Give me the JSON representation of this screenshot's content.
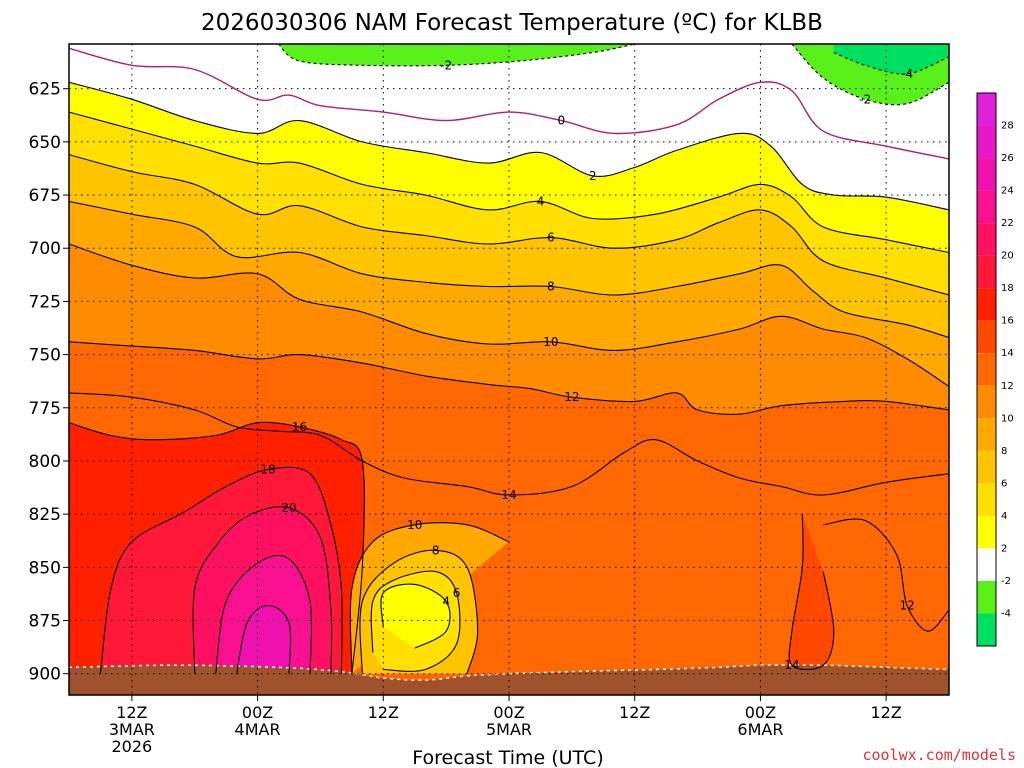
{
  "chart_data": {
    "type": "heatmap",
    "title": "2026030306 NAM Forecast Temperature (ºC) for KLBB",
    "xlabel": "Forecast Time (UTC)",
    "ylabel": "",
    "watermark": "coolwx.com/models",
    "x_ticks": [
      {
        "hours": 6,
        "lines": [
          "12Z",
          "3MAR",
          "2026"
        ]
      },
      {
        "hours": 18,
        "lines": [
          "00Z",
          "4MAR"
        ]
      },
      {
        "hours": 30,
        "lines": [
          "12Z"
        ]
      },
      {
        "hours": 42,
        "lines": [
          "00Z",
          "5MAR"
        ]
      },
      {
        "hours": 54,
        "lines": [
          "12Z"
        ]
      },
      {
        "hours": 66,
        "lines": [
          "00Z",
          "6MAR"
        ]
      },
      {
        "hours": 78,
        "lines": [
          "12Z"
        ]
      }
    ],
    "xlim": [
      0,
      84
    ],
    "y_ticks": [
      "625",
      "650",
      "675",
      "700",
      "725",
      "750",
      "775",
      "800",
      "825",
      "850",
      "875",
      "900"
    ],
    "y_tick_values": [
      625,
      650,
      675,
      700,
      725,
      750,
      775,
      800,
      825,
      850,
      875,
      900
    ],
    "ylim": [
      604,
      910
    ],
    "y_reversed": true,
    "colorbar": {
      "levels": [
        -6,
        -4,
        -2,
        2,
        4,
        6,
        8,
        10,
        12,
        14,
        16,
        18,
        20,
        22,
        24,
        26,
        28,
        30
      ],
      "tick_labels": [
        "-4",
        "-2",
        "2",
        "4",
        "6",
        "8",
        "10",
        "12",
        "14",
        "16",
        "18",
        "20",
        "22",
        "24",
        "26",
        "28"
      ],
      "colors": [
        "#00e060",
        "#58f018",
        "#ffffff",
        "#ffff00",
        "#ffe000",
        "#ffc400",
        "#ffa800",
        "#ff8c00",
        "#ff6800",
        "#ff4800",
        "#ff2000",
        "#ff1838",
        "#ff1060",
        "#f81090",
        "#f010b0",
        "#e818c8",
        "#e020d8"
      ]
    },
    "surface_color": "#a0522d",
    "contours": [
      {
        "label": "-4",
        "color": "#000000",
        "dashed": true,
        "p": [
          [
            73,
            608
          ],
          [
            76,
            614
          ],
          [
            80,
            618
          ],
          [
            84,
            610
          ]
        ]
      },
      {
        "label": "-2",
        "color": "#000000",
        "dashed": true,
        "p": [
          [
            20,
            604
          ],
          [
            22,
            612
          ],
          [
            28,
            614
          ],
          [
            36,
            614
          ],
          [
            43,
            612
          ],
          [
            50,
            608
          ],
          [
            54,
            604
          ]
        ]
      },
      {
        "label": "-2",
        "color": "#000000",
        "dashed": true,
        "p": [
          [
            69,
            604
          ],
          [
            72,
            620
          ],
          [
            76,
            630
          ],
          [
            80,
            632
          ],
          [
            84,
            622
          ]
        ]
      },
      {
        "label": "0",
        "color": "#b0206a",
        "dashed": false,
        "p": [
          [
            0,
            606
          ],
          [
            6,
            614
          ],
          [
            12,
            616
          ],
          [
            18,
            630
          ],
          [
            21,
            628
          ],
          [
            24,
            633
          ],
          [
            30,
            636
          ],
          [
            36,
            640
          ],
          [
            42,
            636
          ],
          [
            47,
            640
          ],
          [
            52,
            646
          ],
          [
            58,
            642
          ],
          [
            62,
            630
          ],
          [
            66,
            622
          ],
          [
            69,
            626
          ],
          [
            72,
            645
          ],
          [
            78,
            652
          ],
          [
            84,
            658
          ]
        ]
      },
      {
        "label": "2",
        "color": "#000000",
        "dashed": false,
        "p": [
          [
            0,
            622
          ],
          [
            6,
            630
          ],
          [
            12,
            640
          ],
          [
            18,
            646
          ],
          [
            22,
            640
          ],
          [
            28,
            650
          ],
          [
            34,
            655
          ],
          [
            40,
            660
          ],
          [
            45,
            655
          ],
          [
            50,
            666
          ],
          [
            54,
            662
          ],
          [
            58,
            654
          ],
          [
            64,
            646
          ],
          [
            67,
            652
          ],
          [
            70,
            670
          ],
          [
            73,
            675
          ],
          [
            78,
            676
          ],
          [
            84,
            682
          ]
        ]
      },
      {
        "label": "4",
        "color": "#000000",
        "dashed": false,
        "p": [
          [
            0,
            636
          ],
          [
            6,
            644
          ],
          [
            12,
            652
          ],
          [
            18,
            660
          ],
          [
            22,
            660
          ],
          [
            28,
            670
          ],
          [
            34,
            675
          ],
          [
            40,
            682
          ],
          [
            45,
            678
          ],
          [
            50,
            686
          ],
          [
            56,
            684
          ],
          [
            62,
            676
          ],
          [
            66,
            670
          ],
          [
            69,
            676
          ],
          [
            72,
            690
          ],
          [
            78,
            696
          ],
          [
            84,
            702
          ]
        ]
      },
      {
        "label": "6",
        "color": "#000000",
        "dashed": false,
        "p": [
          [
            0,
            656
          ],
          [
            6,
            664
          ],
          [
            12,
            670
          ],
          [
            18,
            684
          ],
          [
            22,
            680
          ],
          [
            28,
            690
          ],
          [
            34,
            694
          ],
          [
            40,
            698
          ],
          [
            46,
            695
          ],
          [
            52,
            700
          ],
          [
            58,
            696
          ],
          [
            62,
            688
          ],
          [
            66,
            682
          ],
          [
            69,
            690
          ],
          [
            72,
            706
          ],
          [
            78,
            714
          ],
          [
            84,
            722
          ]
        ]
      },
      {
        "label": "8",
        "color": "#000000",
        "dashed": false,
        "p": [
          [
            0,
            678
          ],
          [
            6,
            684
          ],
          [
            12,
            690
          ],
          [
            16,
            704
          ],
          [
            22,
            702
          ],
          [
            28,
            712
          ],
          [
            34,
            716
          ],
          [
            40,
            718
          ],
          [
            46,
            718
          ],
          [
            52,
            722
          ],
          [
            58,
            718
          ],
          [
            64,
            712
          ],
          [
            68,
            708
          ],
          [
            71,
            720
          ],
          [
            74,
            730
          ],
          [
            80,
            736
          ],
          [
            84,
            742
          ]
        ]
      },
      {
        "label": "10",
        "color": "#000000",
        "dashed": false,
        "p": [
          [
            0,
            698
          ],
          [
            6,
            708
          ],
          [
            12,
            714
          ],
          [
            18,
            712
          ],
          [
            22,
            724
          ],
          [
            28,
            730
          ],
          [
            34,
            740
          ],
          [
            40,
            745
          ],
          [
            46,
            744
          ],
          [
            52,
            748
          ],
          [
            58,
            744
          ],
          [
            64,
            738
          ],
          [
            68,
            732
          ],
          [
            72,
            738
          ],
          [
            76,
            742
          ],
          [
            80,
            752
          ],
          [
            84,
            765
          ]
        ]
      },
      {
        "label": "12",
        "color": "#000000",
        "dashed": false,
        "p": [
          [
            0,
            744
          ],
          [
            6,
            746
          ],
          [
            12,
            748
          ],
          [
            18,
            752
          ],
          [
            22,
            750
          ],
          [
            28,
            754
          ],
          [
            34,
            760
          ],
          [
            40,
            764
          ],
          [
            44,
            766
          ],
          [
            48,
            770
          ],
          [
            54,
            772
          ],
          [
            58,
            768
          ],
          [
            60,
            776
          ],
          [
            64,
            778
          ],
          [
            68,
            774
          ],
          [
            74,
            772
          ],
          [
            78,
            772
          ],
          [
            84,
            776
          ]
        ]
      },
      {
        "label": "14",
        "color": "#000000",
        "dashed": false,
        "p": [
          [
            0,
            768
          ],
          [
            6,
            770
          ],
          [
            12,
            776
          ],
          [
            16,
            784
          ],
          [
            20,
            786
          ],
          [
            24,
            788
          ],
          [
            28,
            800
          ],
          [
            32,
            808
          ],
          [
            38,
            812
          ],
          [
            42,
            816
          ],
          [
            48,
            812
          ],
          [
            53,
            796
          ],
          [
            56,
            790
          ],
          [
            60,
            800
          ],
          [
            64,
            808
          ],
          [
            68,
            812
          ],
          [
            72,
            816
          ],
          [
            78,
            810
          ],
          [
            84,
            806
          ]
        ]
      },
      {
        "label": "16",
        "color": "#000000",
        "dashed": false,
        "p": [
          [
            0,
            782
          ],
          [
            4,
            788
          ],
          [
            8,
            790
          ],
          [
            14,
            788
          ],
          [
            18,
            782
          ],
          [
            22,
            784
          ],
          [
            26,
            790
          ],
          [
            28,
            800
          ],
          [
            28,
            850
          ],
          [
            27,
            900
          ]
        ]
      },
      {
        "label": "18",
        "color": "#000000",
        "dashed": false,
        "p": [
          [
            3,
            900
          ],
          [
            4,
            860
          ],
          [
            6,
            838
          ],
          [
            11,
            824
          ],
          [
            15,
            812
          ],
          [
            19,
            804
          ],
          [
            23,
            806
          ],
          [
            25,
            830
          ],
          [
            26,
            860
          ],
          [
            26,
            900
          ]
        ]
      },
      {
        "label": "20",
        "color": "#000000",
        "dashed": false,
        "p": [
          [
            12,
            900
          ],
          [
            12,
            860
          ],
          [
            14,
            840
          ],
          [
            17,
            826
          ],
          [
            21,
            822
          ],
          [
            24,
            836
          ],
          [
            25,
            870
          ],
          [
            25,
            900
          ]
        ]
      },
      {
        "label": "",
        "color": "#000000",
        "dashed": false,
        "p": [
          [
            14,
            900
          ],
          [
            15,
            866
          ],
          [
            18,
            848
          ],
          [
            21,
            846
          ],
          [
            23,
            866
          ],
          [
            23,
            900
          ]
        ]
      },
      {
        "label": "",
        "color": "#000000",
        "dashed": false,
        "p": [
          [
            16,
            900
          ],
          [
            17,
            876
          ],
          [
            19,
            868
          ],
          [
            21,
            876
          ],
          [
            21,
            900
          ]
        ]
      },
      {
        "label": "10",
        "color": "#000000",
        "dashed": false,
        "p": [
          [
            27,
            900
          ],
          [
            27,
            860
          ],
          [
            29,
            838
          ],
          [
            33,
            830
          ],
          [
            38,
            830
          ],
          [
            42,
            838
          ]
        ]
      },
      {
        "label": "8",
        "color": "#000000",
        "dashed": false,
        "p": [
          [
            28,
            900
          ],
          [
            28,
            866
          ],
          [
            31,
            848
          ],
          [
            35,
            842
          ],
          [
            38,
            850
          ],
          [
            39,
            880
          ],
          [
            38,
            900
          ]
        ]
      },
      {
        "label": "6",
        "color": "#000000",
        "dashed": false,
        "p": [
          [
            29,
            890
          ],
          [
            29,
            866
          ],
          [
            31,
            856
          ],
          [
            35,
            852
          ],
          [
            37,
            862
          ],
          [
            37,
            886
          ],
          [
            34,
            898
          ],
          [
            30,
            898
          ]
        ]
      },
      {
        "label": "4",
        "color": "#000000",
        "dashed": false,
        "p": [
          [
            30,
            878
          ],
          [
            30,
            862
          ],
          [
            33,
            858
          ],
          [
            36,
            866
          ],
          [
            36,
            880
          ],
          [
            33,
            888
          ]
        ]
      },
      {
        "label": "14",
        "color": "#000000",
        "dashed": false,
        "p": [
          [
            70,
            825
          ],
          [
            70,
            850
          ],
          [
            69,
            880
          ],
          [
            69,
            896
          ],
          [
            72,
            896
          ],
          [
            73,
            880
          ],
          [
            72,
            852
          ]
        ]
      },
      {
        "label": "12",
        "color": "#000000",
        "dashed": false,
        "p": [
          [
            72,
            830
          ],
          [
            76,
            828
          ],
          [
            79,
            844
          ],
          [
            80,
            868
          ],
          [
            82,
            880
          ],
          [
            84,
            870
          ]
        ]
      }
    ]
  }
}
